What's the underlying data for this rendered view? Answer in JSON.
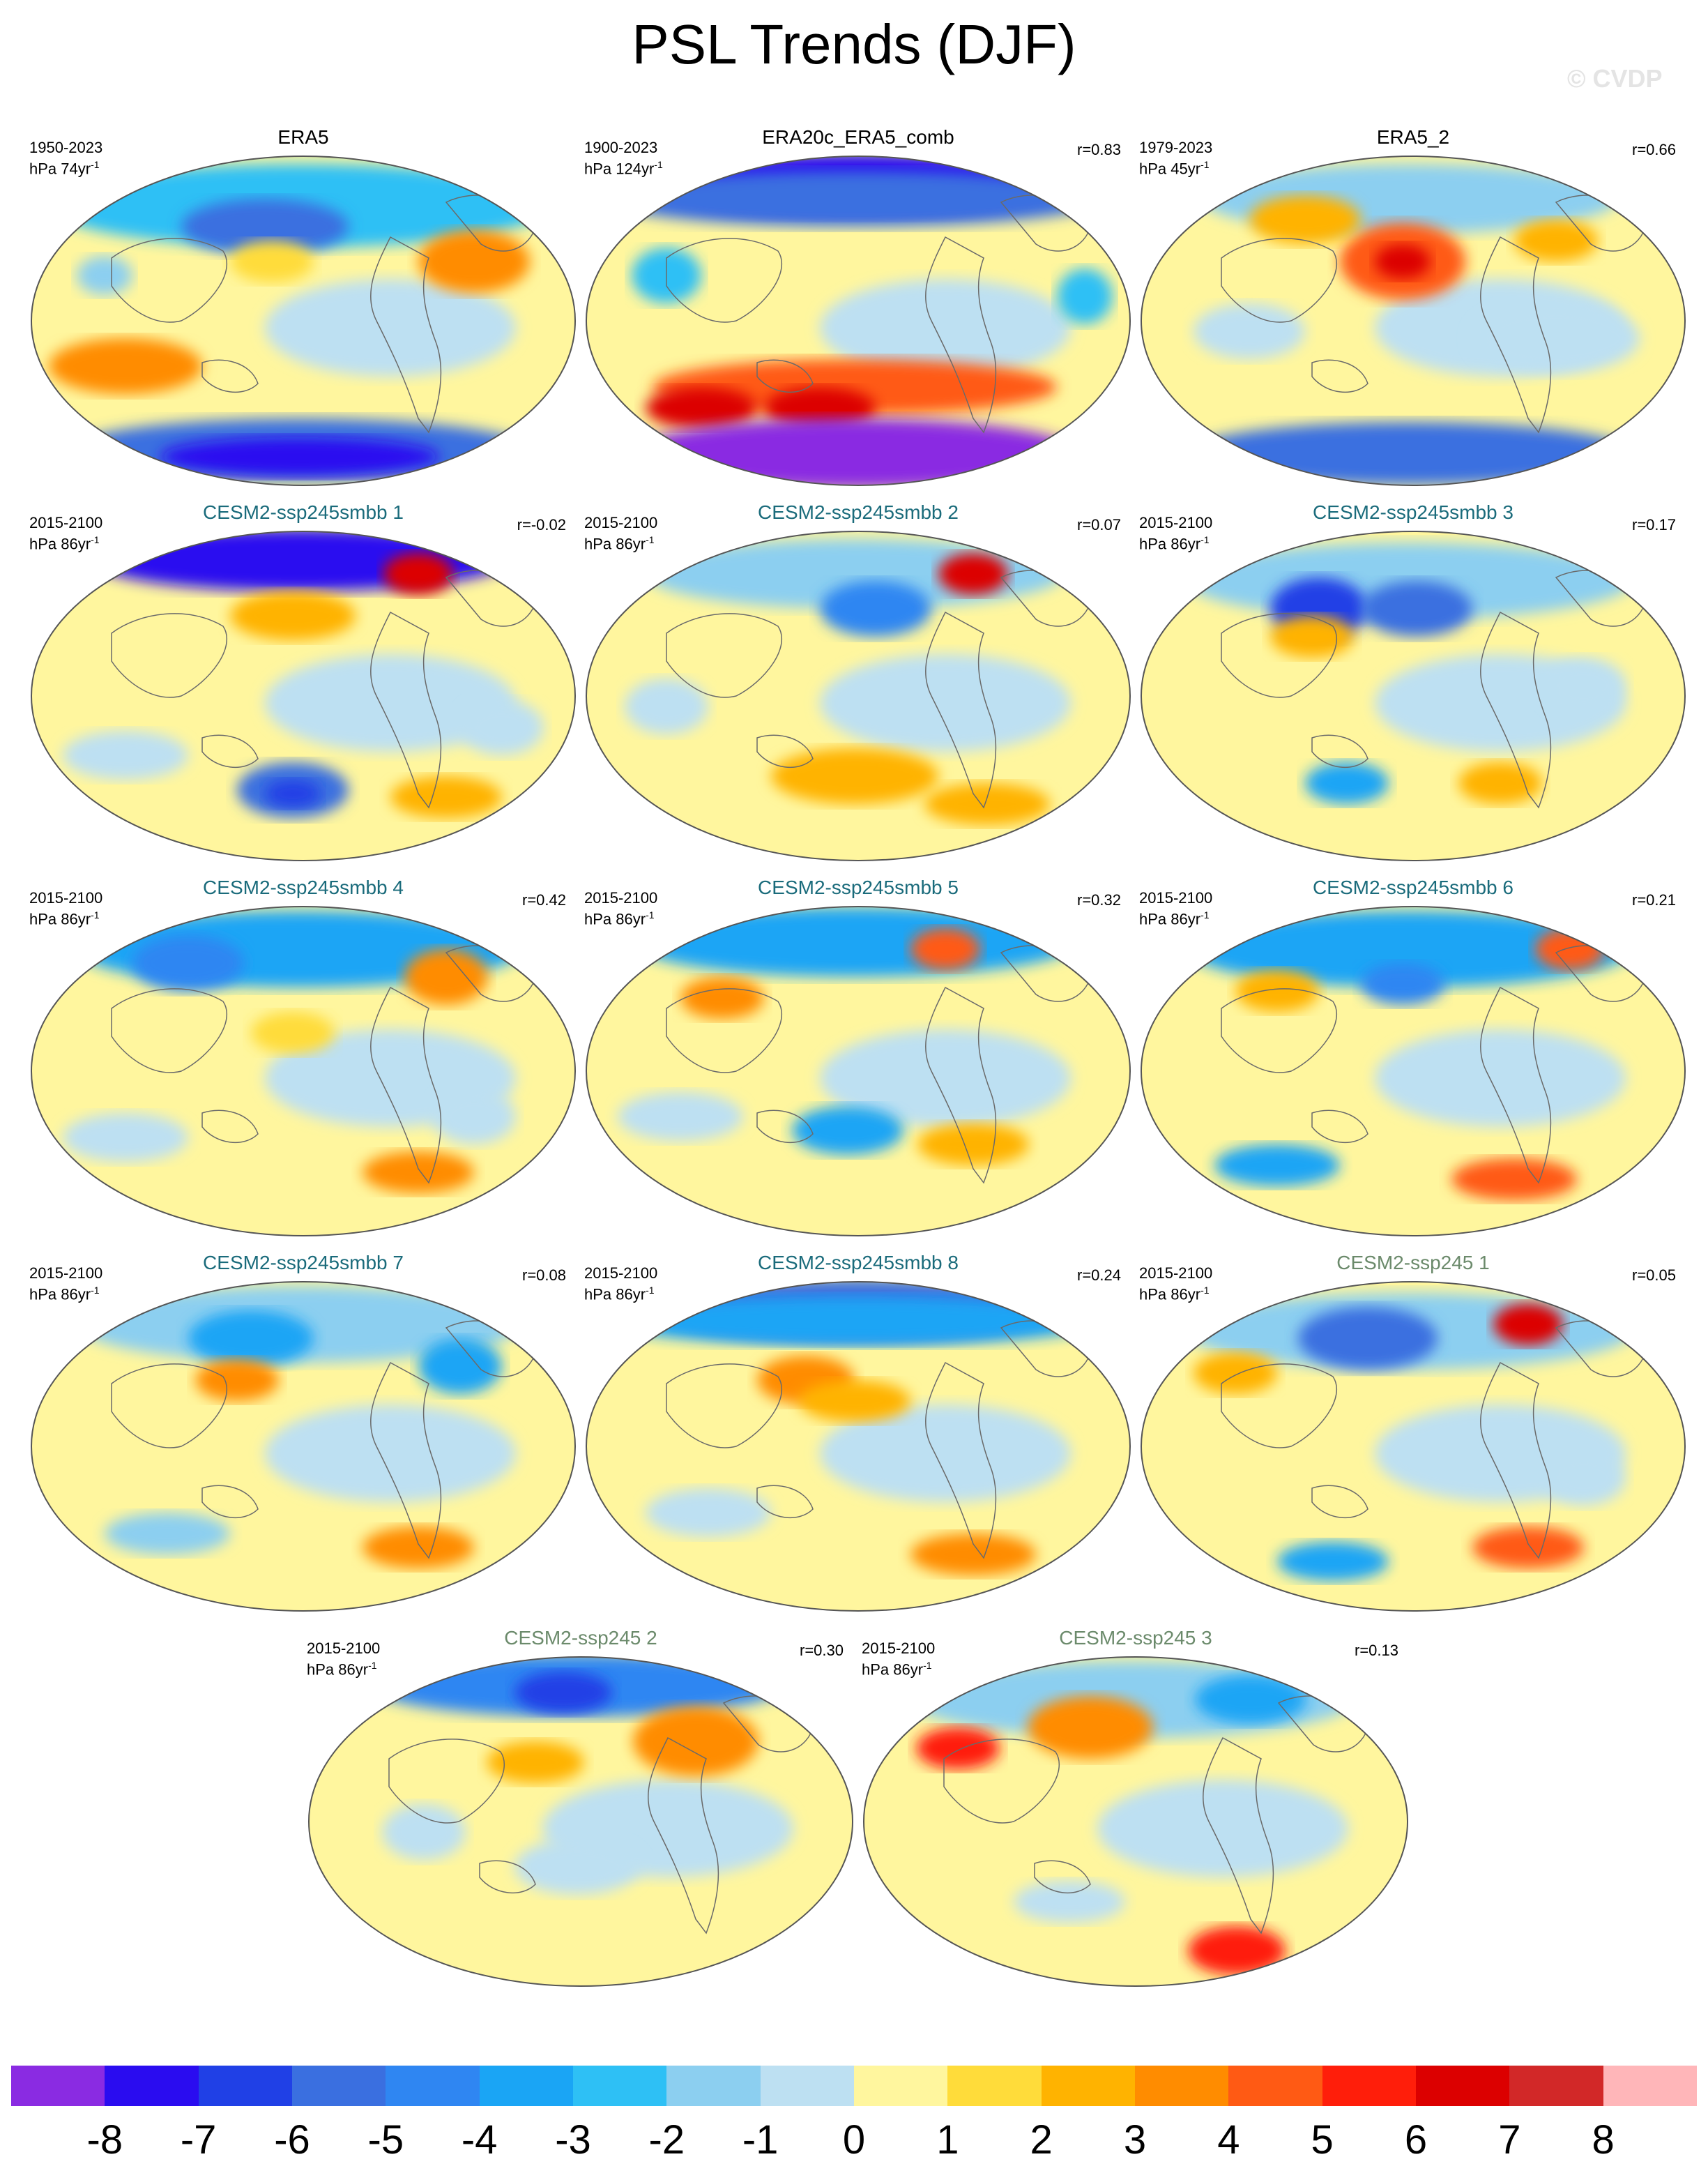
{
  "title": "PSL Trends (DJF)",
  "watermark": "© CVDP",
  "units_sup": "-1",
  "panels": [
    {
      "title": "ERA5",
      "years": "1950-2023",
      "units": "hPa 74yr",
      "r": "",
      "group": "ref"
    },
    {
      "title": "ERA20c_ERA5_comb",
      "years": "1900-2023",
      "units": "hPa 124yr",
      "r": "r=0.83",
      "group": "ref"
    },
    {
      "title": "ERA5_2",
      "years": "1979-2023",
      "units": "hPa 45yr",
      "r": "r=0.66",
      "group": "ref"
    },
    {
      "title": "CESM2-ssp245smbb 1",
      "years": "2015-2100",
      "units": "hPa 86yr",
      "r": "r=-0.02",
      "group": "smbb"
    },
    {
      "title": "CESM2-ssp245smbb 2",
      "years": "2015-2100",
      "units": "hPa 86yr",
      "r": "r=0.07",
      "group": "smbb"
    },
    {
      "title": "CESM2-ssp245smbb 3",
      "years": "2015-2100",
      "units": "hPa 86yr",
      "r": "r=0.17",
      "group": "smbb"
    },
    {
      "title": "CESM2-ssp245smbb 4",
      "years": "2015-2100",
      "units": "hPa 86yr",
      "r": "r=0.42",
      "group": "smbb"
    },
    {
      "title": "CESM2-ssp245smbb 5",
      "years": "2015-2100",
      "units": "hPa 86yr",
      "r": "r=0.32",
      "group": "smbb"
    },
    {
      "title": "CESM2-ssp245smbb 6",
      "years": "2015-2100",
      "units": "hPa 86yr",
      "r": "r=0.21",
      "group": "smbb"
    },
    {
      "title": "CESM2-ssp245smbb 7",
      "years": "2015-2100",
      "units": "hPa 86yr",
      "r": "r=0.08",
      "group": "smbb"
    },
    {
      "title": "CESM2-ssp245smbb 8",
      "years": "2015-2100",
      "units": "hPa 86yr",
      "r": "r=0.24",
      "group": "smbb"
    },
    {
      "title": "CESM2-ssp245 1",
      "years": "2015-2100",
      "units": "hPa 86yr",
      "r": "r=0.05",
      "group": "ssp"
    },
    {
      "title": "CESM2-ssp245 2",
      "years": "2015-2100",
      "units": "hPa 86yr",
      "r": "r=0.30",
      "group": "ssp"
    },
    {
      "title": "CESM2-ssp245 3",
      "years": "2015-2100",
      "units": "hPa 86yr",
      "r": "r=0.13",
      "group": "ssp"
    }
  ],
  "colorbar": {
    "colors": [
      "#8a2be2",
      "#2a0cf0",
      "#2040e6",
      "#3a6fe0",
      "#2f86f2",
      "#1aa5f5",
      "#2ec0f5",
      "#8ccff0",
      "#bde0f2",
      "#fff69e",
      "#ffdc3a",
      "#ffb300",
      "#ff8c00",
      "#ff5a14",
      "#ff1e0a",
      "#dc0000",
      "#d22828",
      "#ffb6b9"
    ],
    "labels": [
      "-8",
      "-7",
      "-6",
      "-5",
      "-4",
      "-3",
      "-2",
      "-1",
      "0",
      "1",
      "2",
      "3",
      "4",
      "5",
      "6",
      "7",
      "8"
    ]
  }
}
